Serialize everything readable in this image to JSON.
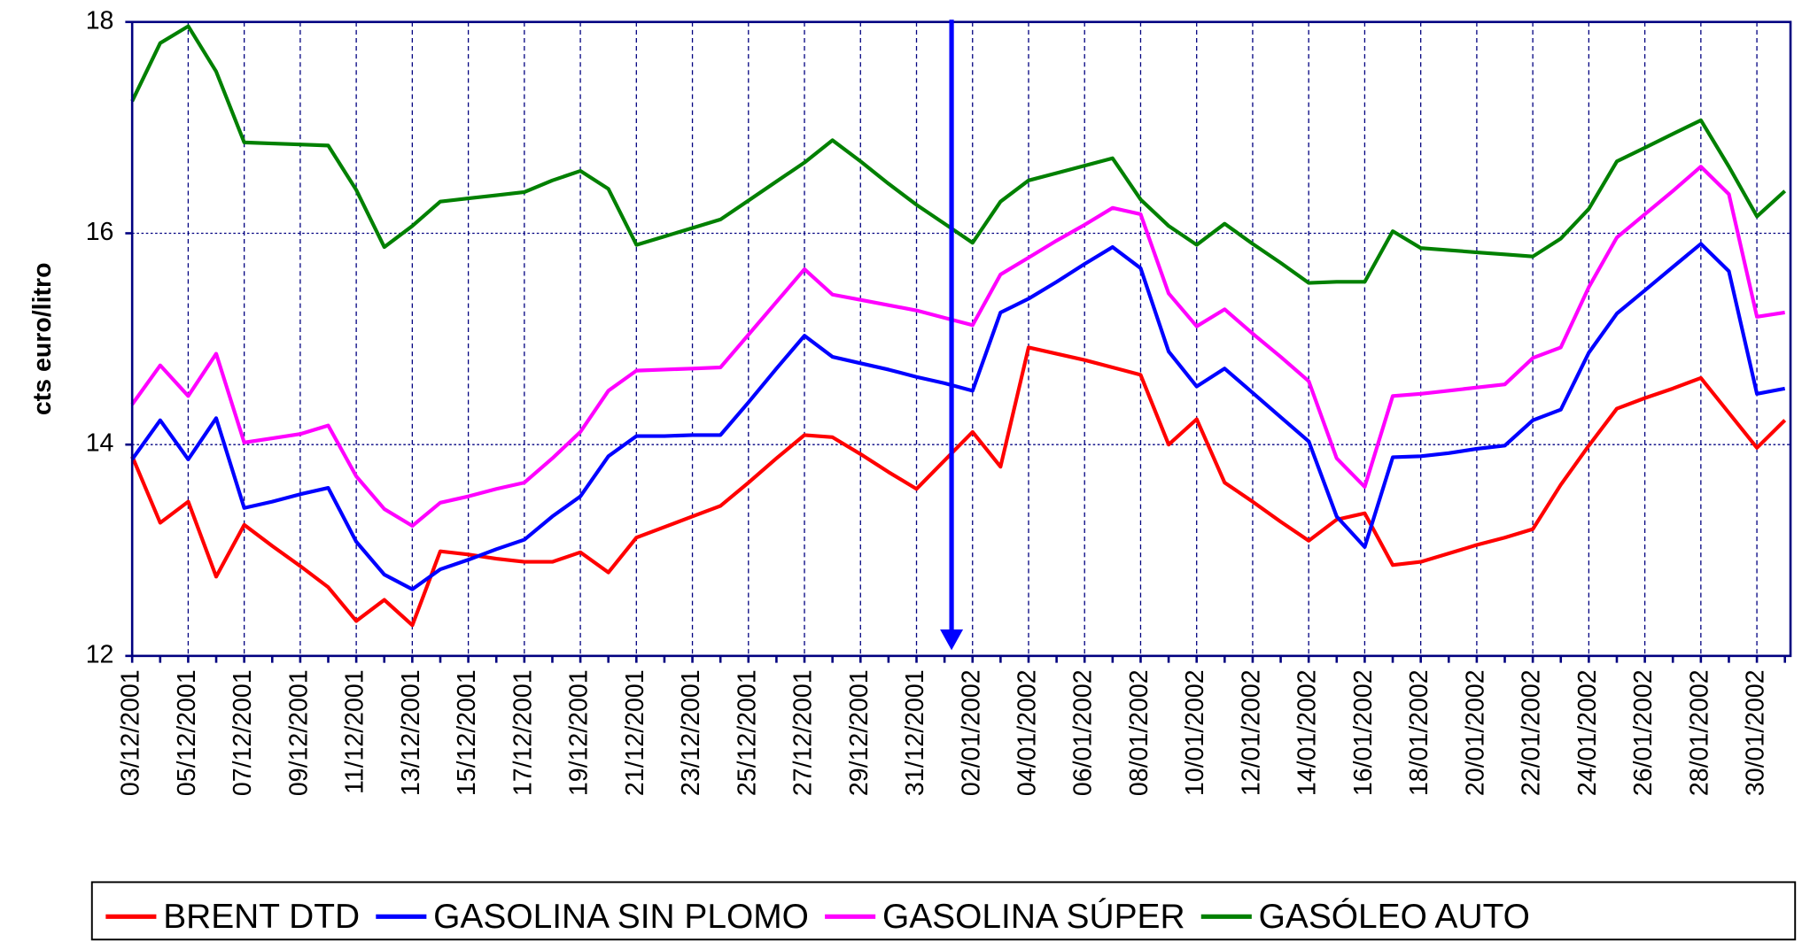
{
  "chart_data": {
    "type": "line",
    "y_label": "cts euro/litro",
    "categories": [
      "03/12/2001",
      null,
      "05/12/2001",
      null,
      "07/12/2001",
      null,
      "09/12/2001",
      null,
      "11/12/2001",
      null,
      "13/12/2001",
      null,
      "15/12/2001",
      null,
      "17/12/2001",
      null,
      "19/12/2001",
      null,
      "21/12/2001",
      null,
      "23/12/2001",
      null,
      "25/12/2001",
      null,
      "27/12/2001",
      null,
      "29/12/2001",
      null,
      "31/12/2001",
      null,
      "02/01/2002",
      null,
      "04/01/2002",
      null,
      "06/01/2002",
      null,
      "08/01/2002",
      null,
      "10/01/2002",
      null,
      "12/01/2002",
      null,
      "14/01/2002",
      null,
      "16/01/2002",
      null,
      "18/01/2002",
      null,
      "20/01/2002",
      null,
      "22/01/2002",
      null,
      "24/01/2002",
      null,
      "26/01/2002",
      null,
      "28/01/2002",
      null,
      "30/01/2002",
      null
    ],
    "ylim": [
      12,
      18
    ],
    "yticks": [
      12,
      14,
      16,
      18
    ],
    "grid": true,
    "legend": "bottom",
    "series": [
      {
        "name": "BRENT DTD",
        "color": "#ff0000",
        "values": [
          13.89,
          13.26,
          13.46,
          12.75,
          13.24,
          13.04,
          12.85,
          12.65,
          12.33,
          12.53,
          12.29,
          12.99,
          12.96,
          12.92,
          12.89,
          12.89,
          12.98,
          12.79,
          13.12,
          13.22,
          13.32,
          13.42,
          13.64,
          13.87,
          14.09,
          14.07,
          13.91,
          13.74,
          13.58,
          13.85,
          14.12,
          13.79,
          14.92,
          14.86,
          14.8,
          14.73,
          14.66,
          14.0,
          14.24,
          13.64,
          13.46,
          13.27,
          13.09,
          13.29,
          13.35,
          12.86,
          12.89,
          12.97,
          13.05,
          13.12,
          13.2,
          13.62,
          13.99,
          14.34,
          14.44,
          14.53,
          14.63,
          14.3,
          13.97,
          14.23
        ]
      },
      {
        "name": "GASOLINA SIN PLOMO",
        "color": "#0000ff",
        "values": [
          13.86,
          14.23,
          13.86,
          14.25,
          13.4,
          13.46,
          13.53,
          13.59,
          13.08,
          12.77,
          12.63,
          12.82,
          12.91,
          13.01,
          13.1,
          13.32,
          13.51,
          13.89,
          14.08,
          14.08,
          14.09,
          14.09,
          14.4,
          14.72,
          15.03,
          14.83,
          14.77,
          14.71,
          14.64,
          14.58,
          14.51,
          15.25,
          15.38,
          15.54,
          15.71,
          15.87,
          15.67,
          14.88,
          14.55,
          14.72,
          14.49,
          14.26,
          14.03,
          13.32,
          13.03,
          13.88,
          13.89,
          13.92,
          13.96,
          13.99,
          14.23,
          14.33,
          14.87,
          15.24,
          15.46,
          15.68,
          15.9,
          15.64,
          14.48,
          14.53
        ]
      },
      {
        "name": "GASOLINA SÚPER",
        "color": "#ff00ff",
        "values": [
          14.38,
          14.75,
          14.46,
          14.86,
          14.02,
          14.06,
          14.1,
          14.18,
          13.7,
          13.39,
          13.23,
          13.45,
          13.51,
          13.58,
          13.64,
          13.87,
          14.12,
          14.51,
          14.7,
          14.71,
          14.72,
          14.73,
          15.04,
          15.35,
          15.66,
          15.42,
          15.37,
          15.32,
          15.27,
          15.2,
          15.13,
          15.61,
          15.77,
          15.93,
          16.08,
          16.24,
          16.18,
          15.43,
          15.12,
          15.28,
          15.05,
          14.83,
          14.6,
          13.87,
          13.6,
          14.46,
          14.48,
          14.51,
          14.54,
          14.57,
          14.82,
          14.92,
          15.49,
          15.96,
          16.18,
          16.4,
          16.63,
          16.37,
          15.21,
          15.25
        ]
      },
      {
        "name": "GASÓLEO AUTO",
        "color": "#008000",
        "values": [
          17.25,
          17.8,
          17.96,
          17.53,
          16.86,
          16.85,
          16.84,
          16.83,
          16.41,
          15.87,
          16.07,
          16.3,
          16.33,
          16.36,
          16.39,
          16.5,
          16.59,
          16.42,
          15.89,
          15.97,
          16.05,
          16.13,
          16.31,
          16.49,
          16.67,
          16.88,
          16.68,
          16.47,
          16.27,
          16.09,
          15.91,
          16.3,
          16.5,
          16.57,
          16.64,
          16.71,
          16.32,
          16.07,
          15.89,
          16.09,
          15.9,
          15.72,
          15.53,
          15.54,
          15.54,
          16.02,
          15.86,
          15.84,
          15.82,
          15.8,
          15.78,
          15.95,
          16.23,
          16.68,
          16.81,
          16.94,
          17.07,
          16.63,
          16.16,
          16.4
        ]
      }
    ]
  }
}
